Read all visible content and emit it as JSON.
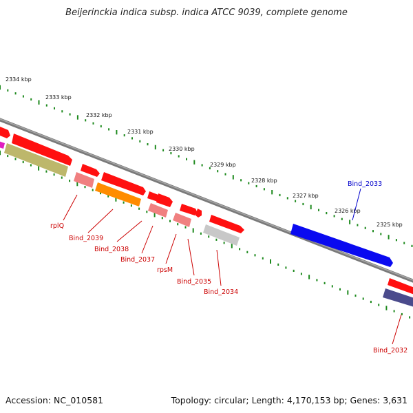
{
  "title": "Beijerinckia indica subsp. indica ATCC 9039, complete genome",
  "footer": {
    "accession": "Accession: NC_010581",
    "summary": "Topology: circular; Length: 4,170,153 bp; Genes: 3,631"
  },
  "colors": {
    "background": "#ffffff",
    "backbone": "#8a8a8a",
    "tick_green": "#1e8a1e",
    "label_red": "#cc0000",
    "label_blue": "#0000cc",
    "gene_red": "#ff1010",
    "gene_pink": "#f08080",
    "gene_olive": "#bdb76b",
    "gene_orange": "#ff8c00",
    "gene_gray": "#c8c8c8",
    "gene_blue": "#0a0af0",
    "gene_navy": "#4b4b8c",
    "gene_magenta": "#e020c0"
  },
  "position_labels": [
    "2334 kbp",
    "2333 kbp",
    "2332 kbp",
    "2331 kbp",
    "2330 kbp",
    "2329 kbp",
    "2328 kbp",
    "2327 kbp",
    "2326 kbp",
    "2325 kbp"
  ],
  "genes": [
    {
      "name": "rplQ",
      "color": "label_red"
    },
    {
      "name": "Bind_2039",
      "color": "label_red"
    },
    {
      "name": "Bind_2038",
      "color": "label_red"
    },
    {
      "name": "Bind_2037",
      "color": "label_red"
    },
    {
      "name": "rpsM",
      "color": "label_red"
    },
    {
      "name": "Bind_2035",
      "color": "label_red"
    },
    {
      "name": "Bind_2034",
      "color": "label_red"
    },
    {
      "name": "Bind_2033",
      "color": "label_blue"
    },
    {
      "name": "Bind_2032",
      "color": "label_red"
    }
  ]
}
